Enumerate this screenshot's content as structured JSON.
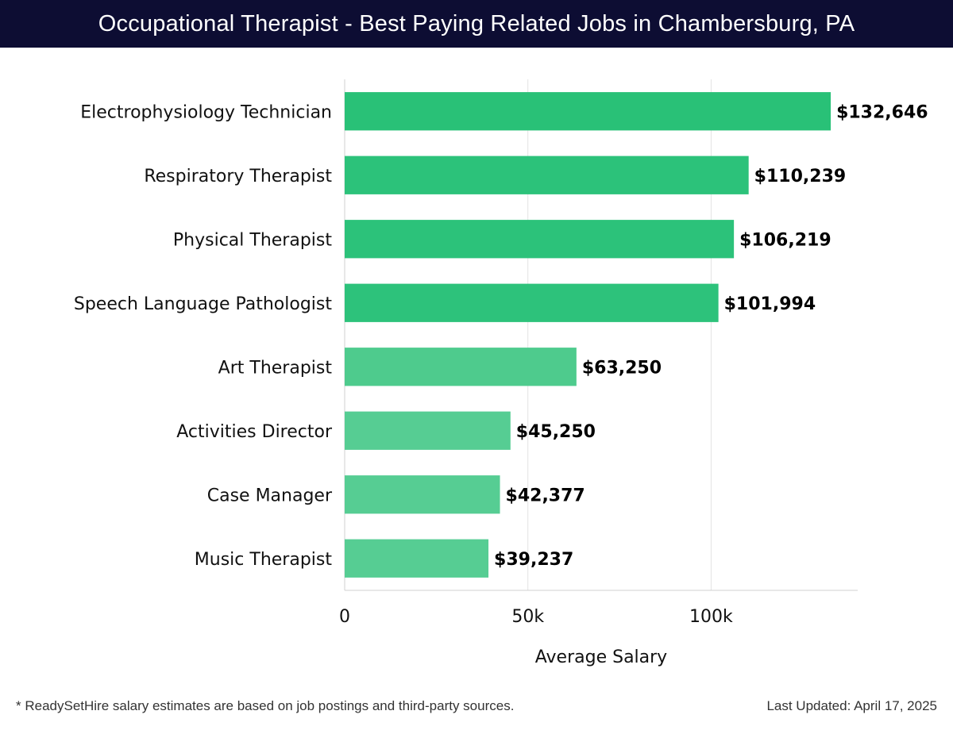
{
  "header": {
    "title": "Occupational Therapist - Best Paying Related Jobs in Chambersburg, PA",
    "background_color": "#0d0d33"
  },
  "chart_data": {
    "type": "bar",
    "orientation": "horizontal",
    "categories": [
      "Electrophysiology Technician",
      "Respiratory Therapist",
      "Physical Therapist",
      "Speech Language Pathologist",
      "Art Therapist",
      "Activities Director",
      "Case Manager",
      "Music Therapist"
    ],
    "values": [
      132646,
      110239,
      106219,
      101994,
      63250,
      45250,
      42377,
      39237
    ],
    "value_labels": [
      "$132,646",
      "$110,239",
      "$106,219",
      "$101,994",
      "$63,250",
      "$45,250",
      "$42,377",
      "$39,237"
    ],
    "bar_colors": [
      "#29c177",
      "#2cc27a",
      "#2cc27a",
      "#2dc27b",
      "#4ecb8d",
      "#56cd93",
      "#56cd93",
      "#56cd93"
    ],
    "xlabel": "Average Salary",
    "ylabel": "",
    "xlim": [
      0,
      140000
    ],
    "xticks": [
      0,
      50000,
      100000
    ],
    "xtick_labels": [
      "0",
      "50k",
      "100k"
    ],
    "grid": "vertical",
    "legend": "none"
  },
  "footer": {
    "note": "* ReadySetHire salary estimates are based on job postings and third-party sources.",
    "updated": "Last Updated: April 17, 2025"
  }
}
